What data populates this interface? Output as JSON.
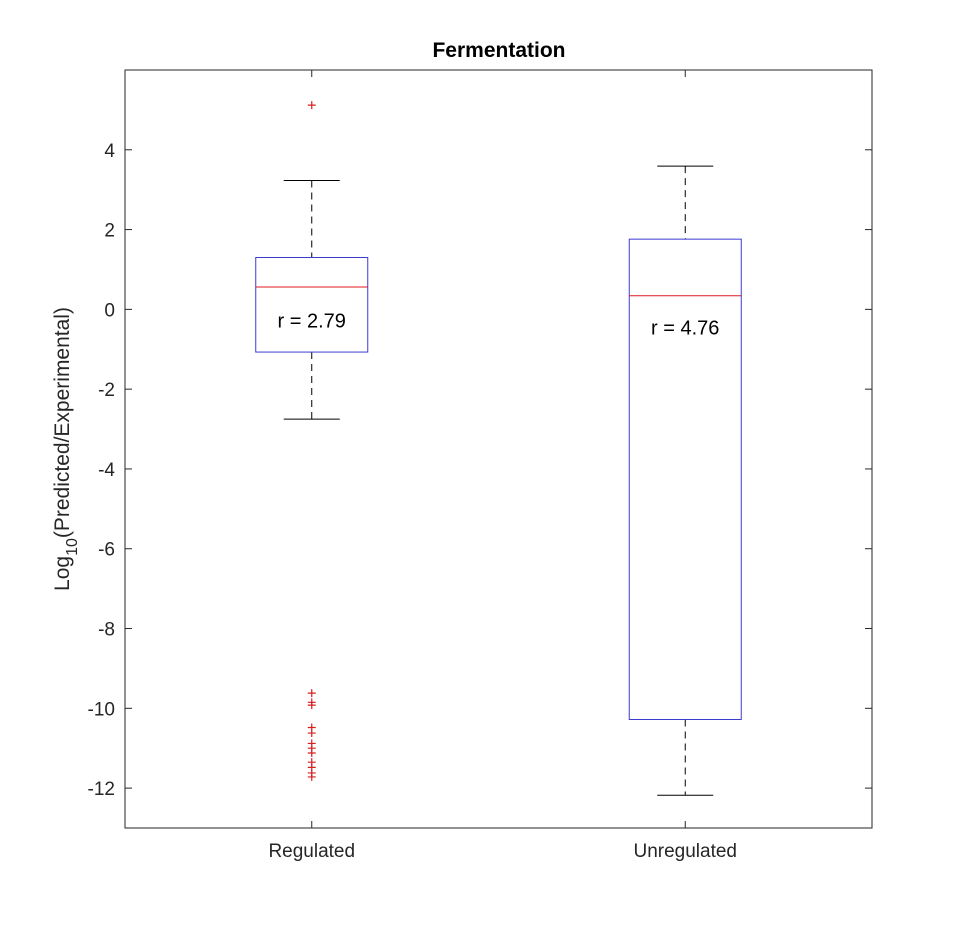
{
  "chart_data": {
    "type": "box",
    "title": "Fermentation",
    "ylabel": "Log10(Predicted/Experimental)",
    "ylabel_parts": {
      "main": "Log",
      "sub": "10",
      "rest": "(Predicted/Experimental)"
    },
    "xlabel": "",
    "categories": [
      "Regulated",
      "Unregulated"
    ],
    "ylim": [
      -13,
      6
    ],
    "yticks": [
      -12,
      -10,
      -8,
      -6,
      -4,
      -2,
      0,
      2,
      4
    ],
    "grid": false,
    "boxes": [
      {
        "category": "Regulated",
        "whisker_low": -2.75,
        "q1": -1.07,
        "median": 0.56,
        "q3": 1.3,
        "whisker_high": 3.23,
        "outliers": [
          5.12,
          -9.62,
          -9.85,
          -9.92,
          -10.48,
          -10.62,
          -10.88,
          -11.0,
          -11.12,
          -11.35,
          -11.48,
          -11.62,
          -11.72
        ],
        "annotation": "r = 2.79",
        "annotation_y": -0.28
      },
      {
        "category": "Unregulated",
        "whisker_low": -12.18,
        "q1": -10.28,
        "median": 0.34,
        "q3": 1.76,
        "whisker_high": 3.59,
        "outliers": [],
        "annotation": "r = 4.76",
        "annotation_y": -0.45
      }
    ],
    "colors": {
      "box": "#3b3bd1",
      "median": "#e0191f",
      "whisker": "#000000",
      "outlier": "#d62020"
    }
  }
}
